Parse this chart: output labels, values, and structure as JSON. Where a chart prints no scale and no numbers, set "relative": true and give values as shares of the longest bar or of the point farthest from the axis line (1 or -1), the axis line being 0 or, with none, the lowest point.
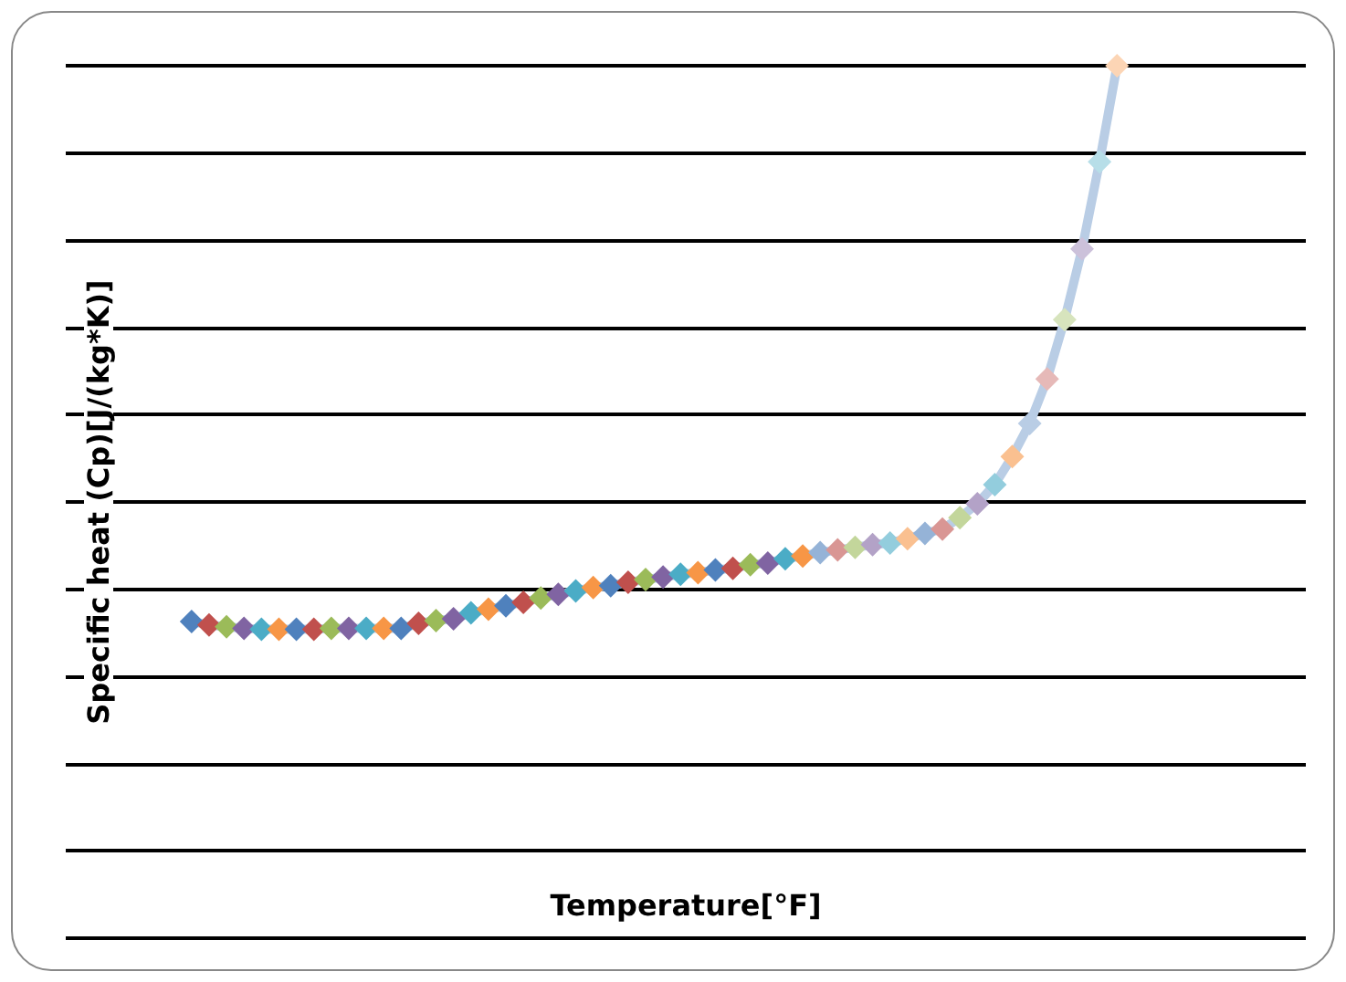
{
  "chart_data": {
    "type": "line",
    "relative": true,
    "xlabel": "Temperature[°F]",
    "ylabel": "Specific heat (Cp)[J/(kg*K)]",
    "grid": "y",
    "color": "#b9cde5",
    "marker": "diamond",
    "line_style": "solid",
    "categories": [
      null,
      null,
      null,
      null,
      null,
      null,
      null,
      null,
      null,
      null,
      null,
      null,
      null,
      null,
      null,
      null,
      null,
      null,
      null,
      null,
      null,
      null,
      null,
      null,
      null,
      null,
      null,
      null,
      null,
      null,
      null,
      null,
      null,
      null,
      null,
      null,
      null,
      null,
      null,
      null,
      null,
      null,
      null,
      null,
      null,
      null,
      null,
      null,
      null,
      null,
      null,
      null,
      null,
      null
    ],
    "values": [
      0.363,
      0.359,
      0.357,
      0.355,
      0.354,
      0.354,
      0.354,
      0.354,
      0.355,
      0.355,
      0.355,
      0.355,
      0.355,
      0.361,
      0.364,
      0.366,
      0.373,
      0.377,
      0.381,
      0.385,
      0.39,
      0.394,
      0.398,
      0.402,
      0.404,
      0.408,
      0.411,
      0.414,
      0.417,
      0.419,
      0.422,
      0.424,
      0.428,
      0.43,
      0.435,
      0.438,
      0.442,
      0.445,
      0.448,
      0.451,
      0.453,
      0.458,
      0.464,
      0.469,
      0.482,
      0.498,
      0.52,
      0.552,
      0.59,
      0.641,
      0.709,
      0.79,
      0.89,
      1
    ],
    "colors": [
      "#4f81bd",
      "#c0504d",
      "#9bbb59",
      "#8064a2",
      "#4bacc6",
      "#f79646",
      "#4f81bd",
      "#c0504d",
      "#9bbb59",
      "#8064a2",
      "#4bacc6",
      "#f79646",
      "#4f81bd",
      "#c0504d",
      "#9bbb59",
      "#8064a2",
      "#4bacc6",
      "#f79646",
      "#4f81bd",
      "#c0504d",
      "#9bbb59",
      "#8064a2",
      "#4bacc6",
      "#f79646",
      "#4f81bd",
      "#c0504d",
      "#9bbb59",
      "#8064a2",
      "#4bacc6",
      "#f79646",
      "#4f81bd",
      "#c0504d",
      "#9bbb59",
      "#8064a2",
      "#4bacc6",
      "#f79646",
      "#95b3d7",
      "#d99694",
      "#c3d69b",
      "#b3a2c7",
      "#93cddd",
      "#fac090",
      "#95b3d7",
      "#d99694",
      "#c3d69b",
      "#b3a2c7",
      "#93cddd",
      "#fac090",
      "#b9cde5",
      "#e6b9b8",
      "#d7e4bd",
      "#ccc1da",
      "#b7dee8",
      "#fcd5b5"
    ]
  }
}
